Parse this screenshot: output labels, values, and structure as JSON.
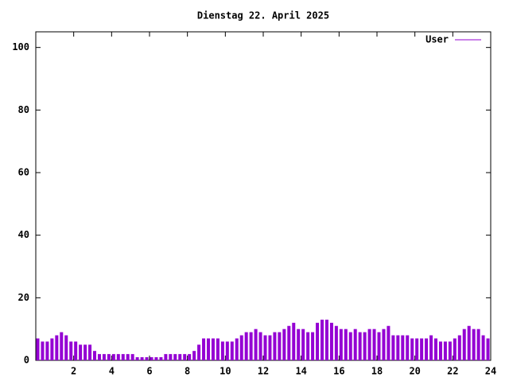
{
  "chart_data": {
    "type": "bar",
    "title": "Dienstag 22. April 2025",
    "x": [
      0,
      0.25,
      0.5,
      0.75,
      1,
      1.25,
      1.5,
      1.75,
      2,
      2.25,
      2.5,
      2.75,
      3,
      3.25,
      3.5,
      3.75,
      4,
      4.25,
      4.5,
      4.75,
      5,
      5.25,
      5.5,
      5.75,
      6,
      6.25,
      6.5,
      6.75,
      7,
      7.25,
      7.5,
      7.75,
      8,
      8.25,
      8.5,
      8.75,
      9,
      9.25,
      9.5,
      9.75,
      10,
      10.25,
      10.5,
      10.75,
      11,
      11.25,
      11.5,
      11.75,
      12,
      12.25,
      12.5,
      12.75,
      13,
      13.25,
      13.5,
      13.75,
      14,
      14.25,
      14.5,
      14.75,
      15,
      15.25,
      15.5,
      15.75,
      16,
      16.25,
      16.5,
      16.75,
      17,
      17.25,
      17.5,
      17.75,
      18,
      18.25,
      18.5,
      18.75,
      19,
      19.25,
      19.5,
      19.75,
      20,
      20.25,
      20.5,
      20.75,
      21,
      21.25,
      21.5,
      21.75,
      22,
      22.25,
      22.5,
      22.75,
      23,
      23.25,
      23.5,
      23.75
    ],
    "series": [
      {
        "name": "User",
        "color": "#9400d3",
        "values": [
          7,
          6,
          6,
          7,
          8,
          9,
          8,
          6,
          6,
          5,
          5,
          5,
          3,
          2,
          2,
          2,
          2,
          2,
          2,
          2,
          2,
          1,
          1,
          1,
          1,
          1,
          1,
          2,
          2,
          2,
          2,
          2,
          2,
          3,
          5,
          7,
          7,
          7,
          7,
          6,
          6,
          6,
          7,
          8,
          9,
          9,
          10,
          9,
          8,
          8,
          9,
          9,
          10,
          11,
          12,
          10,
          10,
          9,
          9,
          12,
          13,
          13,
          12,
          11,
          10,
          10,
          9,
          10,
          9,
          9,
          10,
          10,
          9,
          10,
          11,
          8,
          8,
          8,
          8,
          7,
          7,
          7,
          7,
          8,
          7,
          6,
          6,
          6,
          7,
          8,
          10,
          11,
          10,
          10,
          8,
          7
        ]
      }
    ],
    "xlim": [
      0,
      24
    ],
    "xticks": [
      2,
      4,
      6,
      8,
      10,
      12,
      14,
      16,
      18,
      20,
      22,
      24
    ],
    "ylim": [
      0,
      105
    ],
    "yticks": [
      0,
      20,
      40,
      60,
      80,
      100
    ],
    "legend": "upper right"
  }
}
